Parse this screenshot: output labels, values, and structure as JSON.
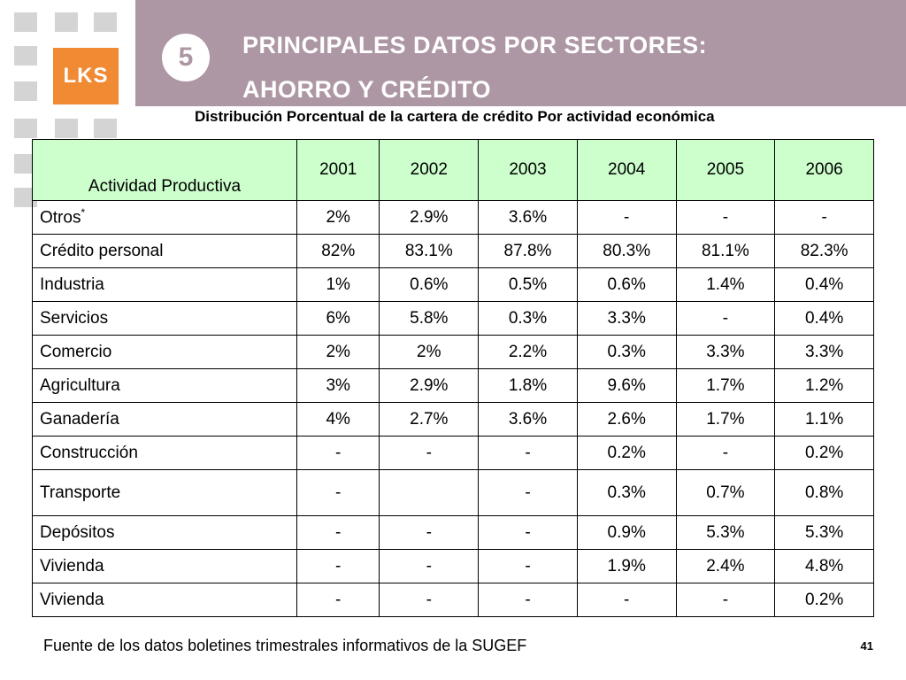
{
  "logo": {
    "text": "LKS"
  },
  "section_number": "5",
  "title_line1": "PRINCIPALES DATOS POR SECTORES:",
  "title_line2": "AHORRO Y CRÉDITO",
  "subtitle": "Distribución Porcentual de la cartera de crédito Por actividad económica",
  "table": {
    "header": [
      "Actividad Productiva",
      "2001",
      "2002",
      "2003",
      "2004",
      "2005",
      "2006"
    ],
    "rows": [
      {
        "label": "Otros",
        "marker": "*",
        "values": [
          "2%",
          "2.9%",
          "3.6%",
          "-",
          "-",
          "-"
        ]
      },
      {
        "label": "Crédito personal",
        "values": [
          "82%",
          "83.1%",
          "87.8%",
          "80.3%",
          "81.1%",
          "82.3%"
        ]
      },
      {
        "label": "Industria",
        "values": [
          "1%",
          "0.6%",
          "0.5%",
          "0.6%",
          "1.4%",
          "0.4%"
        ]
      },
      {
        "label": "Servicios",
        "values": [
          "6%",
          "5.8%",
          "0.3%",
          "3.3%",
          "-",
          "0.4%"
        ]
      },
      {
        "label": "Comercio",
        "values": [
          "2%",
          "2%",
          "2.2%",
          "0.3%",
          "3.3%",
          "3.3%"
        ]
      },
      {
        "label": "Agricultura",
        "values": [
          "3%",
          "2.9%",
          "1.8%",
          "9.6%",
          "1.7%",
          "1.2%"
        ]
      },
      {
        "label": "Ganadería",
        "values": [
          "4%",
          "2.7%",
          "3.6%",
          "2.6%",
          "1.7%",
          "1.1%"
        ]
      },
      {
        "label": "Construcción",
        "values": [
          "-",
          "-",
          "-",
          "0.2%",
          "-",
          "0.2%"
        ]
      },
      {
        "label": "Transporte",
        "values": [
          "-",
          "",
          "-",
          "0.3%",
          "0.7%",
          "0.8%"
        ]
      },
      {
        "label": "Depósitos",
        "values": [
          "-",
          "-",
          "-",
          "0.9%",
          "5.3%",
          "5.3%"
        ]
      },
      {
        "label": "Vivienda",
        "values": [
          "-",
          "-",
          "-",
          "1.9%",
          "2.4%",
          "4.8%"
        ]
      },
      {
        "label": "Vivienda",
        "values": [
          "-",
          "-",
          "-",
          "-",
          "-",
          "0.2%"
        ]
      }
    ]
  },
  "footer": "Fuente de los datos boletines  trimestrales informativos de la SUGEF",
  "page_number": "41",
  "colors": {
    "header_band": "#ae97a4",
    "logo": "#f08a33",
    "table_header": "#ccffcc",
    "grid_squares": "#d4d4d4"
  }
}
